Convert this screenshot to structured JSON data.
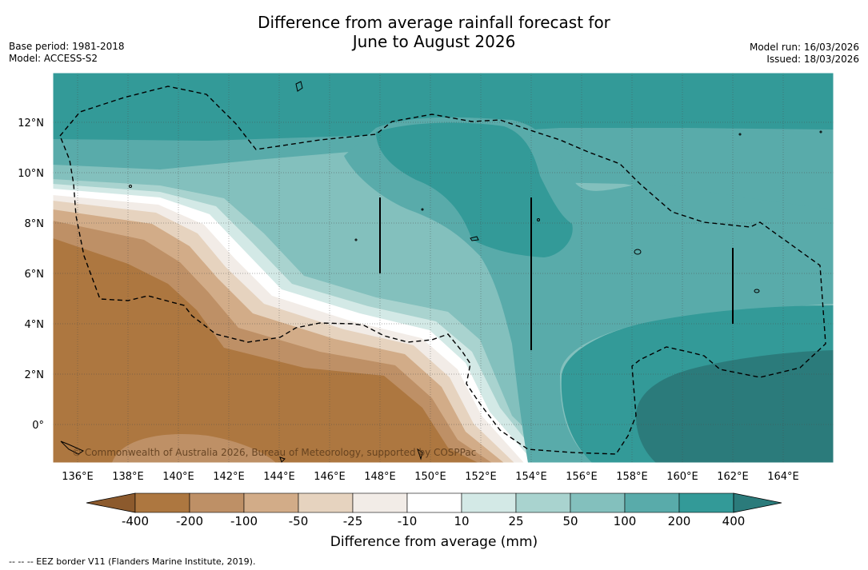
{
  "title": {
    "line1": "Difference from average rainfall forecast for",
    "line2": "June to August 2026"
  },
  "meta_left": {
    "base_period": "Base period: 1981-2018",
    "model": "Model: ACCESS-S2"
  },
  "meta_right": {
    "model_run": "Model run: 16/03/2026",
    "issued": "Issued: 18/03/2026"
  },
  "map": {
    "lat_ticks": [
      "12°N",
      "10°N",
      "8°N",
      "6°N",
      "4°N",
      "2°N",
      "0°"
    ],
    "lon_ticks": [
      "136°E",
      "138°E",
      "140°E",
      "142°E",
      "144°E",
      "146°E",
      "148°E",
      "150°E",
      "152°E",
      "154°E",
      "156°E",
      "158°E",
      "160°E",
      "162°E",
      "164°E"
    ],
    "copyright": "© Commonwealth of Australia 2026, Bureau of Meteorology, supported by COSPPac"
  },
  "colorbar": {
    "labels": [
      "-400",
      "-200",
      "-100",
      "-50",
      "-25",
      "-10",
      "10",
      "25",
      "50",
      "100",
      "200",
      "400"
    ],
    "colors": [
      "#8c5a2d",
      "#ad7740",
      "#be9066",
      "#d2ac88",
      "#e6d3bf",
      "#f2ece7",
      "#ffffff",
      "#d3e9e6",
      "#a9d3cf",
      "#83c0bd",
      "#59abaa",
      "#339a98",
      "#2b7b7b"
    ],
    "title": "Difference from average (mm)"
  },
  "footer": "--  --  -- EEZ border V11 (Flanders Marine Institute, 2019)."
}
